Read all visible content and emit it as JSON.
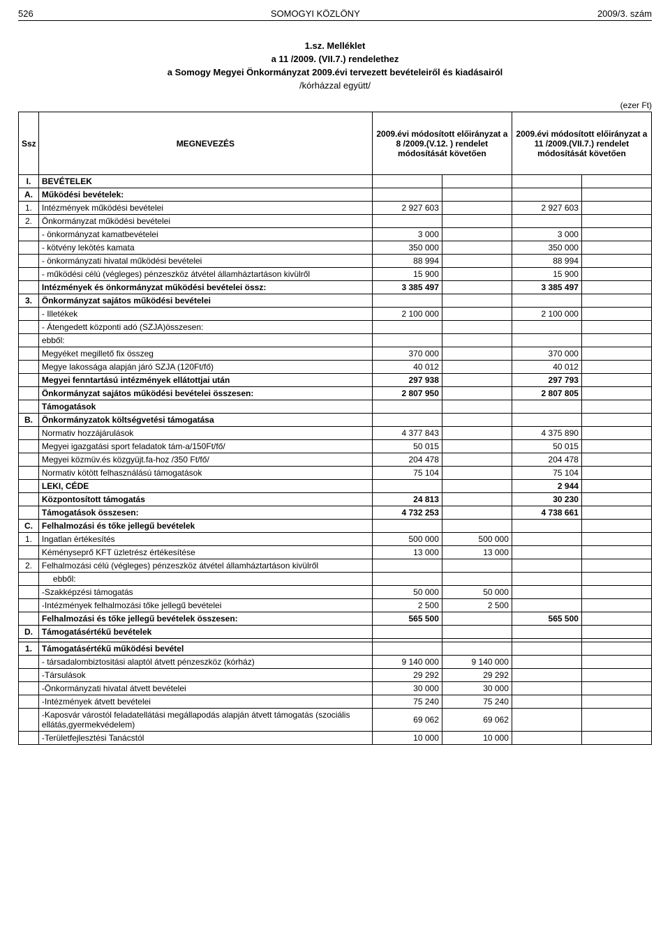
{
  "header": {
    "page_no": "526",
    "journal": "SOMOGYI KÖZLÖNY",
    "issue": "2009/3. szám"
  },
  "title": "1.sz. Melléklet",
  "line2": "a  11 /2009. (VII.7.) rendelethez",
  "line3": "a Somogy Megyei Önkormányzat 2009.évi tervezett bevételeiről és kiadásairól",
  "line4": "/kórházzal együtt/",
  "unit": "(ezer Ft)",
  "columns": {
    "ssz": "Ssz",
    "name": "MEGNEVEZÉS",
    "col1": "2009.évi módosított előirányzat a  8 /2009.(V.12. ) rendelet módosítását követően",
    "col2": "2009.évi módosított előirányzat a   11 /2009.(VII.7.) rendelet módosítását követően"
  },
  "rows": [
    {
      "ssz": "I.",
      "name": "BEVÉTELEK",
      "v": [
        "",
        "",
        "",
        ""
      ],
      "bold": true
    },
    {
      "ssz": "A.",
      "name": "Működési bevételek:",
      "v": [
        "",
        "",
        "",
        ""
      ],
      "bold": true
    },
    {
      "ssz": "1.",
      "name": "Intézmények működési bevételei",
      "v": [
        "2 927 603",
        "",
        "2 927 603",
        ""
      ]
    },
    {
      "ssz": "2.",
      "name": "Önkormányzat működési bevételei",
      "v": [
        "",
        "",
        "",
        ""
      ]
    },
    {
      "ssz": "",
      "name": " - önkormányzat kamatbevételei",
      "v": [
        "3 000",
        "",
        "3 000",
        ""
      ]
    },
    {
      "ssz": "",
      "name": " - kötvény lekötés kamata",
      "v": [
        "350 000",
        "",
        "350 000",
        ""
      ]
    },
    {
      "ssz": "",
      "name": " - önkormányzati hivatal működési bevételei",
      "v": [
        "88 994",
        "",
        "88 994",
        ""
      ]
    },
    {
      "ssz": "",
      "name": " - működési célú (végleges) pénzeszköz átvétel államháztartáson kivülről",
      "v": [
        "15 900",
        "",
        "15 900",
        ""
      ]
    },
    {
      "ssz": "",
      "name": "Intézmények és önkormányzat működési bevételei össz:",
      "v": [
        "3 385 497",
        "",
        "3 385 497",
        ""
      ],
      "bold": true
    },
    {
      "ssz": "3.",
      "name": "Önkormányzat sajátos működési bevételei",
      "v": [
        "",
        "",
        "",
        ""
      ],
      "bold": true
    },
    {
      "ssz": "",
      "name": " - Illetékek",
      "v": [
        "2 100 000",
        "",
        "2 100 000",
        ""
      ]
    },
    {
      "ssz": "",
      "name": " - Átengedett központi adó (SZJA)összesen:",
      "v": [
        "",
        "",
        "",
        ""
      ]
    },
    {
      "ssz": "",
      "name": "ebből:",
      "v": [
        "",
        "",
        "",
        ""
      ]
    },
    {
      "ssz": "",
      "name": "Megyéket megillető fix összeg",
      "v": [
        "370 000",
        "",
        "370 000",
        ""
      ]
    },
    {
      "ssz": "",
      "name": "Megye lakossága alapján járó SZJA (120Ft/fő)",
      "v": [
        "40 012",
        "",
        "40 012",
        ""
      ]
    },
    {
      "ssz": "",
      "name": "Megyei fenntartású intézmények ellátottjai után",
      "v": [
        "297 938",
        "",
        "297 793",
        ""
      ],
      "bold": true
    },
    {
      "ssz": "",
      "name": "Önkormányzat sajátos működési bevételei összesen:",
      "v": [
        "2 807 950",
        "",
        "2 807 805",
        ""
      ],
      "bold": true
    },
    {
      "ssz": "",
      "name": "Támogatások",
      "v": [
        "",
        "",
        "",
        ""
      ],
      "bold": true
    },
    {
      "ssz": "B.",
      "name": "Önkormányzatok költségvetési támogatása",
      "v": [
        "",
        "",
        "",
        ""
      ],
      "bold": true
    },
    {
      "ssz": "",
      "name": "Normativ hozzájárulások",
      "v": [
        "4 377 843",
        "",
        "4 375 890",
        ""
      ]
    },
    {
      "ssz": "",
      "name": "Megyei igazgatási sport feladatok tám-a/150Ft/fő/",
      "v": [
        "50 015",
        "",
        "50 015",
        ""
      ]
    },
    {
      "ssz": "",
      "name": "Megyei közmüv.és közgyüjt.fa-hoz /350 Ft/fő/",
      "v": [
        "204 478",
        "",
        "204 478",
        ""
      ]
    },
    {
      "ssz": "",
      "name": "Normativ kötött felhasználású támogatások",
      "v": [
        "75 104",
        "",
        "75 104",
        ""
      ]
    },
    {
      "ssz": "",
      "name": "LEKI, CÉDE",
      "v": [
        "",
        "",
        "2 944",
        ""
      ],
      "bold": true
    },
    {
      "ssz": "",
      "name": "Központosított támogatás",
      "v": [
        "24 813",
        "",
        "30 230",
        ""
      ],
      "bold": true
    },
    {
      "ssz": "",
      "name": "Támogatások összesen:",
      "v": [
        "4 732 253",
        "",
        "4 738 661",
        ""
      ],
      "bold": true
    },
    {
      "ssz": "C.",
      "name": "Felhalmozási és tőke jellegű bevételek",
      "v": [
        "",
        "",
        "",
        ""
      ],
      "bold": true
    },
    {
      "ssz": "1.",
      "name": "Ingatlan értékesítés",
      "v": [
        "500 000",
        "500 000",
        "",
        ""
      ]
    },
    {
      "ssz": "",
      "name": "Kéményseprő KFT üzletrész értékesítése",
      "v": [
        "13 000",
        "13 000",
        "",
        ""
      ]
    },
    {
      "ssz": "2.",
      "name": "Felhalmozási célú (végleges) pénzeszköz átvétel államháztartáson kivülről",
      "v": [
        "",
        "",
        "",
        ""
      ]
    },
    {
      "ssz": "",
      "name": "ebből:",
      "v": [
        "",
        "",
        "",
        ""
      ],
      "indent": true
    },
    {
      "ssz": "",
      "name": "-Szakképzési támogatás",
      "v": [
        "50 000",
        "50 000",
        "",
        ""
      ]
    },
    {
      "ssz": "",
      "name": "-Intézmények felhalmozási tőke jellegű bevételei",
      "v": [
        "2 500",
        "2 500",
        "",
        ""
      ]
    },
    {
      "ssz": "",
      "name": "Felhalmozási és tőke jellegű bevételek összesen:",
      "v": [
        "565 500",
        "",
        "565 500",
        ""
      ],
      "bold": true
    },
    {
      "ssz": "D.",
      "name": "Támogatásértékű bevételek",
      "v": [
        "",
        "",
        "",
        ""
      ],
      "bold": true
    },
    {
      "ssz": "",
      "name": "",
      "v": [
        "",
        "",
        "",
        ""
      ]
    },
    {
      "ssz": "1.",
      "name": "Támogatásértékű működési bevétel",
      "v": [
        "",
        "",
        "",
        ""
      ],
      "bold": true
    },
    {
      "ssz": "",
      "name": " - társadalombiztositási alaptól átvett pénzeszköz (kórház)",
      "v": [
        "9 140 000",
        "9 140 000",
        "",
        ""
      ]
    },
    {
      "ssz": "",
      "name": " -Társulások",
      "v": [
        "29 292",
        "29 292",
        "",
        ""
      ]
    },
    {
      "ssz": "",
      "name": " -Önkormányzati hivatal átvett  bevételei",
      "v": [
        "30 000",
        "30 000",
        "",
        ""
      ]
    },
    {
      "ssz": "",
      "name": " -Intézmények átvett bevételei",
      "v": [
        "75 240",
        "75 240",
        "",
        ""
      ]
    },
    {
      "ssz": "",
      "name": " -Kaposvár várostól feladatellátási megállapodás alapján átvett támogatás (szociális ellátás,gyermekvédelem)",
      "v": [
        "69 062",
        "69 062",
        "",
        ""
      ]
    },
    {
      "ssz": "",
      "name": " -Területfejlesztési Tanácstól",
      "v": [
        "10 000",
        "10 000",
        "",
        ""
      ]
    }
  ]
}
